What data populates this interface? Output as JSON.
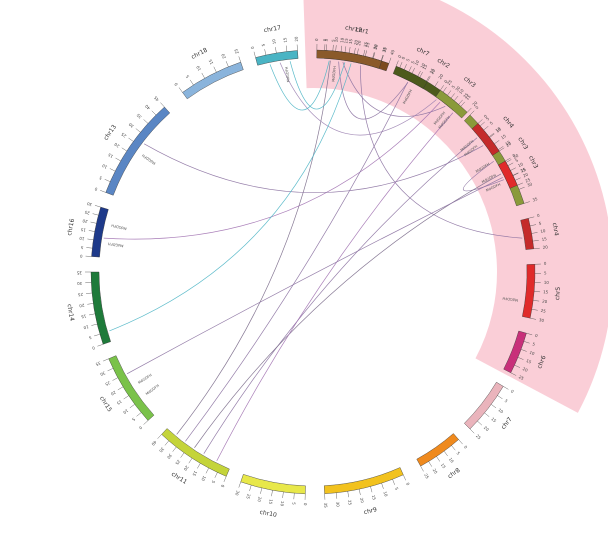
{
  "diagram": {
    "highlight_color": "#f9c6d0",
    "chromosomes": [
      {
        "name": "chr1",
        "color": "#7b4a1e",
        "ticks": [
          "0",
          "5",
          "10",
          "15",
          "20",
          "25",
          "30",
          "35",
          "40"
        ]
      },
      {
        "name": "chr2",
        "color": "#4d5a1c",
        "ticks": [
          "0",
          "5",
          "10",
          "15",
          "20",
          "25",
          "30",
          "35"
        ]
      },
      {
        "name": "chr3",
        "color": "#8a9a3a",
        "ticks": [
          "0",
          "5",
          "10",
          "15",
          "20",
          "25",
          "30",
          "35"
        ]
      },
      {
        "name": "chr4",
        "color": "#c42a2a",
        "ticks": [
          "0",
          "5",
          "10",
          "15",
          "20"
        ]
      },
      {
        "name": "chr5",
        "color": "#e02a2a",
        "ticks": [
          "0",
          "5",
          "10",
          "15",
          "20",
          "25",
          "30"
        ]
      },
      {
        "name": "chr6",
        "color": "#c8307a",
        "ticks": [
          "0",
          "5",
          "10",
          "15",
          "20",
          "25"
        ]
      },
      {
        "name": "chr7",
        "color": "#eab4bc",
        "ticks": [
          "0",
          "5",
          "10",
          "15",
          "20",
          "25"
        ]
      },
      {
        "name": "chr8",
        "color": "#ef8a1e",
        "ticks": [
          "0",
          "5",
          "10",
          "15",
          "20",
          "25"
        ]
      },
      {
        "name": "chr9",
        "color": "#f2c21e",
        "ticks": [
          "0",
          "5",
          "10",
          "15",
          "20",
          "25",
          "30",
          "35"
        ]
      },
      {
        "name": "chr10",
        "color": "#e8e84a",
        "ticks": [
          "0",
          "5",
          "10",
          "15",
          "20",
          "25",
          "30"
        ]
      },
      {
        "name": "chr11",
        "color": "#c4d43a",
        "ticks": [
          "0",
          "5",
          "10",
          "15",
          "20",
          "25",
          "30",
          "35",
          "40"
        ]
      },
      {
        "name": "chr15",
        "color": "#7ac24a",
        "ticks": [
          "0",
          "5",
          "10",
          "15",
          "20",
          "25",
          "30",
          "35"
        ]
      },
      {
        "name": "chr14",
        "color": "#1e7a3a",
        "ticks": [
          "0",
          "5",
          "10",
          "15",
          "20",
          "25",
          "30",
          "35"
        ]
      },
      {
        "name": "chr16",
        "color": "#1e3a8a",
        "ticks": [
          "0",
          "5",
          "10",
          "15",
          "20",
          "25",
          "30"
        ]
      },
      {
        "name": "chr13",
        "color": "#5a86c4",
        "ticks": [
          "0",
          "5",
          "10",
          "15",
          "20",
          "25",
          "30",
          "35",
          "40",
          "45"
        ]
      },
      {
        "name": "chr18",
        "color": "#8ab4dc",
        "ticks": [
          "0",
          "5",
          "10",
          "15",
          "20",
          "25"
        ]
      },
      {
        "name": "chr17",
        "color": "#4ab4c4",
        "ticks": [
          "0",
          "5",
          "10",
          "15",
          "20"
        ]
      },
      {
        "name": "chr12",
        "color": "#8a5a2a",
        "ticks": [
          "0",
          "5",
          "10",
          "15",
          "20",
          "25",
          "30",
          "35"
        ]
      },
      {
        "name": "chr7",
        "color": "#4d5a1c",
        "ticks": [
          "0",
          "5",
          "10",
          "15",
          "20"
        ]
      },
      {
        "name": "chr3",
        "color": "#8a9a3a",
        "ticks": [
          "0",
          "5",
          "10",
          "15",
          "20"
        ]
      },
      {
        "name": "chr4",
        "color": "#c42a2a",
        "ticks": [
          "0",
          "5",
          "10",
          "15",
          "20"
        ]
      },
      {
        "name": "chr3",
        "color": "#e02a2a",
        "ticks": [
          "0",
          "5",
          "10",
          "15",
          "20",
          "25"
        ]
      }
    ],
    "gene_labels": [
      {
        "text": "MdGDFH",
        "chr": 1
      },
      {
        "text": "MdGDFH",
        "chr": 2
      },
      {
        "text": "MdGDFH",
        "chr": 4
      },
      {
        "text": "MdGDFH",
        "chr": 11
      },
      {
        "text": "MdGDFH",
        "chr": 11
      },
      {
        "text": "MdGDFH",
        "chr": 13
      },
      {
        "text": "MdGDFH",
        "chr": 13
      },
      {
        "text": "MdGDFH",
        "chr": 14
      },
      {
        "text": "MdGDFH",
        "chr": 16
      },
      {
        "text": "MdGDFH",
        "chr": 17
      },
      {
        "text": "MdGDFH",
        "chr": 19
      },
      {
        "text": "MdGDFH",
        "chr": 19
      },
      {
        "text": "MdGDFH",
        "chr": 20
      },
      {
        "text": "MdGDFH",
        "chr": 20
      },
      {
        "text": "MdGDFH",
        "chr": 21
      },
      {
        "text": "MdGDFH",
        "chr": 21
      }
    ],
    "links": [
      {
        "from": [
          0,
          0.1
        ],
        "to": [
          10,
          0.85
        ],
        "color": "#7a6a8a"
      },
      {
        "from": [
          0,
          0.3
        ],
        "to": [
          19,
          0.4
        ],
        "color": "#8a70a0"
      },
      {
        "from": [
          1,
          0.2
        ],
        "to": [
          17,
          0.35
        ],
        "color": "#8a70a0"
      },
      {
        "from": [
          1,
          0.7
        ],
        "to": [
          16,
          0.55
        ],
        "color": "#9a80b0"
      },
      {
        "from": [
          2,
          0.5
        ],
        "to": [
          21,
          0.6
        ],
        "color": "#8a70a0"
      },
      {
        "from": [
          3,
          0.6
        ],
        "to": [
          17,
          0.7
        ],
        "color": "#8a70a0"
      },
      {
        "from": [
          10,
          0.4
        ],
        "to": [
          20,
          0.3
        ],
        "color": "#8a70a0"
      },
      {
        "from": [
          10,
          0.55
        ],
        "to": [
          21,
          0.35
        ],
        "color": "#7a6a8a"
      },
      {
        "from": [
          10,
          0.2
        ],
        "to": [
          19,
          0.7
        ],
        "color": "#a070b0"
      },
      {
        "from": [
          13,
          0.4
        ],
        "to": [
          19,
          0.2
        ],
        "color": "#a070b0"
      },
      {
        "from": [
          14,
          0.6
        ],
        "to": [
          20,
          0.6
        ],
        "color": "#8a70a0"
      },
      {
        "from": [
          16,
          0.3
        ],
        "to": [
          17,
          0.2
        ],
        "color": "#4ab4c4"
      },
      {
        "from": [
          16,
          0.8
        ],
        "to": [
          17,
          0.45
        ],
        "color": "#4ab4c4"
      },
      {
        "from": [
          12,
          0.15
        ],
        "to": [
          17,
          0.55
        ],
        "color": "#4ab4c4"
      },
      {
        "from": [
          11,
          0.7
        ],
        "to": [
          21,
          0.5
        ],
        "color": "#8a70a0"
      },
      {
        "from": [
          18,
          0.5
        ],
        "to": [
          10,
          0.7
        ],
        "color": "#8a70a0"
      }
    ]
  }
}
